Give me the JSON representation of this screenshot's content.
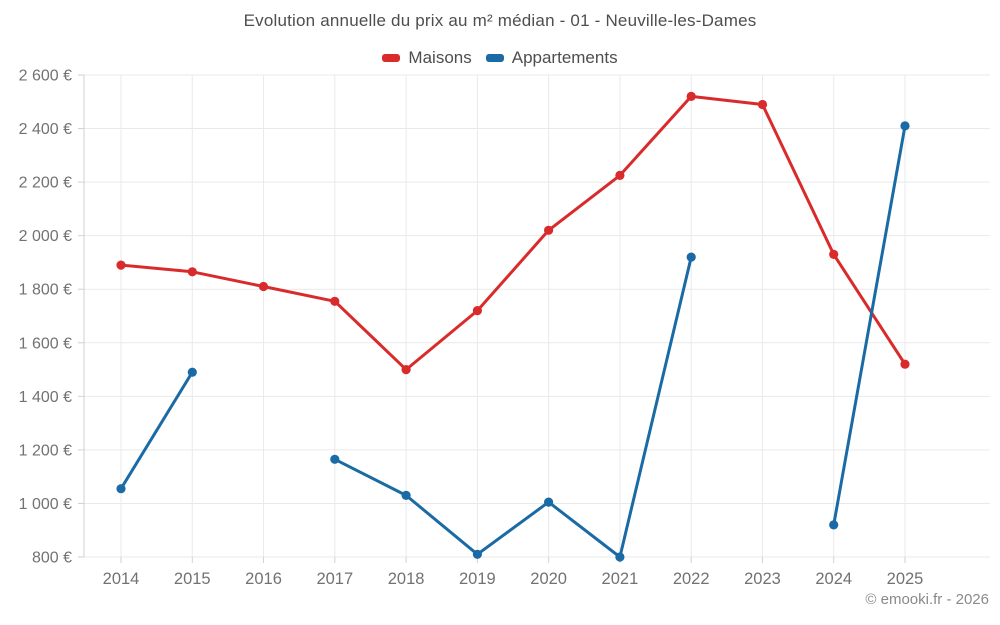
{
  "title": "Evolution annuelle du prix au m² médian - 01 - Neuville-les-Dames",
  "copyright": "© emooki.fr - 2026",
  "chart_data": {
    "type": "line",
    "categories": [
      "2014",
      "2015",
      "2016",
      "2017",
      "2018",
      "2019",
      "2020",
      "2021",
      "2022",
      "2023",
      "2024",
      "2025"
    ],
    "series": [
      {
        "name": "Maisons",
        "color": "#d92b2b",
        "values": [
          1890,
          1865,
          1810,
          1755,
          1500,
          1720,
          2020,
          2225,
          2520,
          2490,
          1930,
          1520
        ]
      },
      {
        "name": "Appartements",
        "color": "#1a6ba5",
        "values": [
          1055,
          1490,
          null,
          1165,
          1030,
          810,
          1005,
          800,
          1920,
          null,
          920,
          2410
        ]
      }
    ],
    "xlabel": "",
    "ylabel": "",
    "ylim": [
      800,
      2600
    ],
    "y_ticks": [
      800,
      1000,
      1200,
      1400,
      1600,
      1800,
      2000,
      2200,
      2400,
      2600
    ],
    "y_tick_labels": [
      "800 €",
      "1 000 €",
      "1 200 €",
      "1 400 €",
      "1 600 €",
      "1 800 €",
      "2 000 €",
      "2 200 €",
      "2 400 €",
      "2 600 €"
    ],
    "grid": true,
    "legend_position": "top"
  }
}
